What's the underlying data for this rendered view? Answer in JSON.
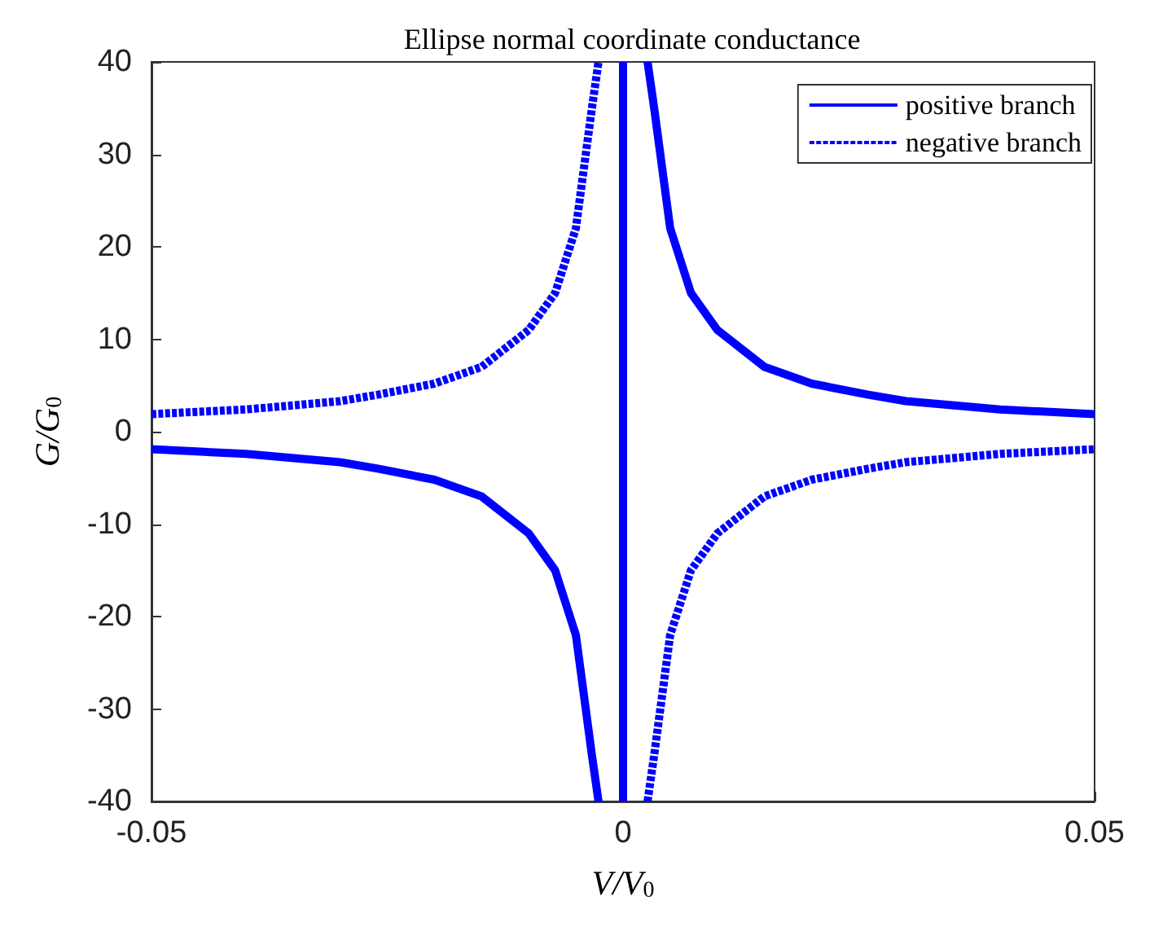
{
  "chart_data": {
    "type": "line",
    "title": "Ellipse normal coordinate conductance",
    "xlabel": "V/V$_{0}$",
    "ylabel": "G/G$_{0}$",
    "xlim": [
      -0.05,
      0.05
    ],
    "xticks": [
      -0.05,
      0,
      0.05
    ],
    "ylim": [
      -40,
      40
    ],
    "yticks": [
      -40,
      -30,
      -20,
      -10,
      0,
      10,
      20,
      30,
      40
    ],
    "grid": false,
    "legend": "top right",
    "marker": "none",
    "series": [
      {
        "name": "positive branch",
        "color": "#0000ff",
        "line_style": "solid",
        "x": [
          -0.05,
          -0.04,
          -0.03,
          -0.026,
          -0.02,
          -0.015,
          -0.01,
          -0.0072,
          -0.005,
          -0.0033,
          -0.0026,
          null,
          0,
          0,
          null,
          0.0026,
          0.0033,
          0.005,
          0.0072,
          0.01,
          0.015,
          0.02,
          0.026,
          0.03,
          0.04,
          0.05
        ],
        "values": [
          -1.9,
          -2.4,
          -3.3,
          -4,
          -5.2,
          -7,
          -11,
          -15,
          -22,
          -35,
          -40,
          null,
          -40,
          40,
          null,
          40,
          35,
          22,
          15,
          11,
          7,
          5.2,
          4,
          3.3,
          2.4,
          1.9
        ]
      },
      {
        "name": "negative branch",
        "color": "#0000ff",
        "line_style": "dashed",
        "x": [
          -0.05,
          -0.04,
          -0.03,
          -0.026,
          -0.02,
          -0.015,
          -0.01,
          -0.0072,
          -0.005,
          -0.0033,
          -0.0026,
          null,
          0.0026,
          0.0033,
          0.005,
          0.0072,
          0.01,
          0.015,
          0.02,
          0.026,
          0.03,
          0.04,
          0.05
        ],
        "values": [
          1.9,
          2.4,
          3.3,
          4,
          5.2,
          7,
          11,
          15,
          22,
          35,
          40,
          null,
          -40,
          -35,
          -22,
          -15,
          -11,
          -7,
          -5.2,
          -4,
          -3.3,
          -2.4,
          -1.9
        ]
      }
    ]
  }
}
